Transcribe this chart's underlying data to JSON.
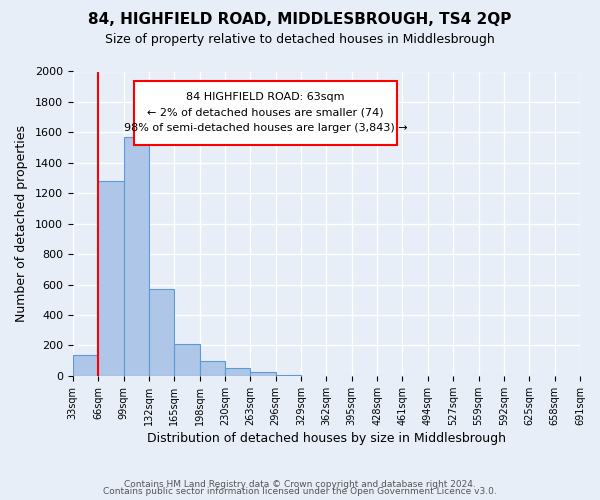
{
  "title": "84, HIGHFIELD ROAD, MIDDLESBROUGH, TS4 2QP",
  "subtitle": "Size of property relative to detached houses in Middlesbrough",
  "xlabel": "Distribution of detached houses by size in Middlesbrough",
  "ylabel": "Number of detached properties",
  "bar_values": [
    140,
    1280,
    1570,
    570,
    210,
    95,
    50,
    25,
    5,
    2,
    0,
    0,
    0,
    0,
    0,
    0,
    0,
    0,
    0,
    0
  ],
  "bin_labels": [
    "33sqm",
    "66sqm",
    "99sqm",
    "132sqm",
    "165sqm",
    "198sqm",
    "230sqm",
    "263sqm",
    "296sqm",
    "329sqm",
    "362sqm",
    "395sqm",
    "428sqm",
    "461sqm",
    "494sqm",
    "527sqm",
    "559sqm",
    "592sqm",
    "625sqm",
    "658sqm",
    "691sqm"
  ],
  "bar_color": "#aec6e8",
  "bar_edge_color": "#5b9bd5",
  "background_color": "#e8eef7",
  "grid_color": "#ffffff",
  "annotation_line1": "84 HIGHFIELD ROAD: 63sqm",
  "annotation_line2": "← 2% of detached houses are smaller (74)",
  "annotation_line3": "98% of semi-detached houses are larger (3,843) →",
  "red_line_bin": 1,
  "ylim": [
    0,
    2000
  ],
  "yticks": [
    0,
    200,
    400,
    600,
    800,
    1000,
    1200,
    1400,
    1600,
    1800,
    2000
  ],
  "footer_line1": "Contains HM Land Registry data © Crown copyright and database right 2024.",
  "footer_line2": "Contains public sector information licensed under the Open Government Licence v3.0."
}
